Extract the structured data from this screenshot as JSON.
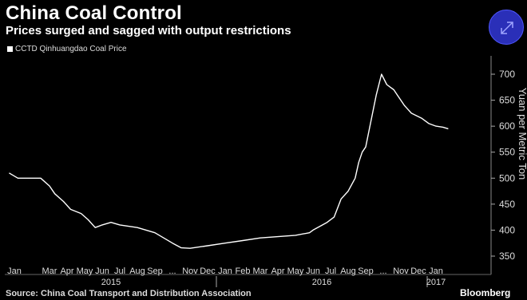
{
  "header": {
    "title": "China Coal Control",
    "subtitle": "Prices surged and sagged with output restrictions"
  },
  "legend": {
    "label": "CCTD Qinhuangdao Coal Price"
  },
  "footer": {
    "source": "Source: China Coal Transport and Distribution Association",
    "brand": "Bloomberg"
  },
  "icons": {
    "expand": "expand-arrows-icon"
  },
  "colors": {
    "background": "#000000",
    "line": "#ffffff",
    "accent": "#2a2fb8"
  },
  "chart_data": {
    "type": "line",
    "title": "China Coal Control",
    "subtitle": "Prices surged and sagged with output restrictions",
    "ylabel": "Yuan per Metric Ton",
    "ylim": [
      340,
      720
    ],
    "yticks": [
      350,
      400,
      450,
      500,
      550,
      600,
      650,
      700
    ],
    "y_axis_side": "right",
    "grid": false,
    "legend_position": "top-left",
    "xlim": [
      -0.3,
      24.9
    ],
    "x_month_labels": [
      "Jan",
      "Mar",
      "Apr",
      "May",
      "Jun",
      "Jul",
      "Aug",
      "Sep",
      "...",
      "Nov",
      "Dec",
      "Jan",
      "Feb",
      "Mar",
      "Apr",
      "May",
      "Jun",
      "Jul",
      "Aug",
      "Sep",
      "...",
      "Nov",
      "Dec",
      "Jan"
    ],
    "x_month_index": [
      0,
      2,
      3,
      4,
      5,
      6,
      7,
      8,
      9,
      10,
      11,
      12,
      13,
      14,
      15,
      16,
      17,
      18,
      19,
      20,
      21,
      22,
      23,
      24
    ],
    "x_year_labels": [
      "2015",
      "2016",
      "2017"
    ],
    "x_year_center_index": [
      5.5,
      17.5,
      24
    ],
    "x_year_dividers_index": [
      11.5,
      23.5
    ],
    "series": [
      {
        "name": "CCTD Qinhuangdao Coal Price",
        "x": [
          -0.3,
          0.2,
          1.5,
          2.0,
          2.3,
          2.8,
          3.2,
          3.8,
          4.2,
          4.6,
          5.0,
          5.5,
          6.0,
          7.0,
          7.5,
          8.0,
          8.5,
          9.0,
          9.5,
          10.0,
          11.0,
          12.0,
          13.0,
          14.0,
          16.0,
          16.8,
          17.0,
          17.8,
          18.2,
          18.6,
          19.0,
          19.4,
          19.6,
          19.8,
          20.0,
          20.3,
          20.6,
          20.9,
          21.2,
          21.4,
          21.6,
          21.8,
          22.2,
          22.6,
          22.9,
          23.2,
          23.6,
          24.0,
          24.4,
          24.7
        ],
        "y": [
          510,
          500,
          500,
          485,
          470,
          455,
          440,
          432,
          420,
          405,
          410,
          415,
          410,
          405,
          400,
          395,
          385,
          375,
          366,
          365,
          370,
          375,
          380,
          385,
          390,
          395,
          400,
          415,
          425,
          460,
          475,
          500,
          530,
          550,
          560,
          610,
          660,
          700,
          680,
          675,
          670,
          660,
          640,
          625,
          620,
          615,
          605,
          600,
          598,
          595
        ]
      }
    ]
  }
}
